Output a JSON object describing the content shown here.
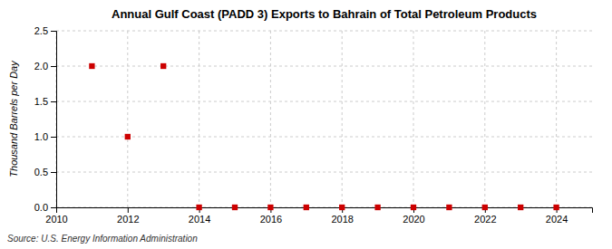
{
  "chart_data": {
    "type": "scatter",
    "title": "Annual Gulf Coast (PADD 3) Exports to Bahrain of Total Petroleum Products",
    "ylabel": "Thousand Barrels per Day",
    "annotations": [
      "Source: U.S. Energy Information Administration"
    ],
    "x": [
      2011,
      2012,
      2013,
      2014,
      2015,
      2016,
      2017,
      2018,
      2019,
      2020,
      2021,
      2022,
      2023,
      2024
    ],
    "values": [
      2.0,
      1.0,
      2.0,
      0.0,
      0.0,
      0.0,
      0.0,
      0.0,
      0.0,
      0.0,
      0.0,
      0.0,
      0.0,
      0.0
    ],
    "color": "#cc0000",
    "marker": "square",
    "xlim": [
      2010,
      2025
    ],
    "xticks": [
      2010,
      2012,
      2014,
      2016,
      2018,
      2020,
      2022,
      2024
    ],
    "ylim": [
      0.0,
      2.5
    ],
    "yticks": [
      {
        "value": 0.0,
        "label": "0.0"
      },
      0.5,
      {
        "value": 1.0,
        "label": "1.0"
      },
      1.5,
      {
        "value": 2.0,
        "label": "2.0"
      },
      2.5
    ],
    "grid": true
  }
}
